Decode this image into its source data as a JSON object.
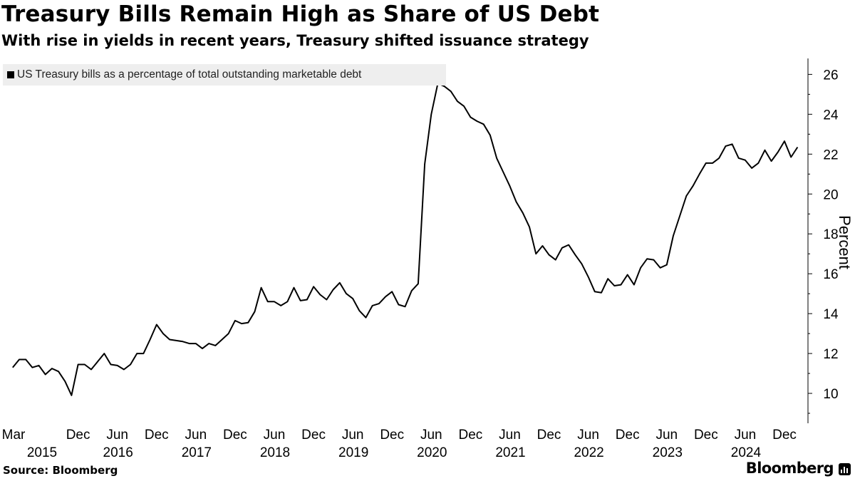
{
  "header": {
    "title": "Treasury Bills Remain High as Share of US Debt",
    "subtitle": "With rise in yields in recent years, Treasury shifted issuance strategy"
  },
  "footer": {
    "source": "Source: Bloomberg",
    "brand": "Bloomberg",
    "brand_icon": "bar-chart-icon"
  },
  "colors": {
    "line": "#000000",
    "legend_bg": "#eeeeee"
  },
  "chart_data": {
    "type": "line",
    "title": "Treasury Bills Remain High as Share of US Debt",
    "ylabel": "Percent",
    "ylim": [
      8.5,
      26.8
    ],
    "yticks": [
      10,
      12,
      14,
      16,
      18,
      20,
      22,
      24,
      26
    ],
    "grid": false,
    "legend_placement": "top-left",
    "y_axis_side": "right",
    "x_ticks": [
      {
        "date": "2015-03",
        "month": "Mar",
        "year": "2015"
      },
      {
        "date": "2015-12",
        "month": "Dec",
        "year": ""
      },
      {
        "date": "2016-06",
        "month": "Jun",
        "year": "2016"
      },
      {
        "date": "2016-12",
        "month": "Dec",
        "year": ""
      },
      {
        "date": "2017-06",
        "month": "Jun",
        "year": "2017"
      },
      {
        "date": "2017-12",
        "month": "Dec",
        "year": ""
      },
      {
        "date": "2018-06",
        "month": "Jun",
        "year": "2018"
      },
      {
        "date": "2018-12",
        "month": "Dec",
        "year": ""
      },
      {
        "date": "2019-06",
        "month": "Jun",
        "year": "2019"
      },
      {
        "date": "2019-12",
        "month": "Dec",
        "year": ""
      },
      {
        "date": "2020-06",
        "month": "Jun",
        "year": "2020"
      },
      {
        "date": "2020-12",
        "month": "Dec",
        "year": ""
      },
      {
        "date": "2021-06",
        "month": "Jun",
        "year": "2021"
      },
      {
        "date": "2021-12",
        "month": "Dec",
        "year": ""
      },
      {
        "date": "2022-06",
        "month": "Jun",
        "year": "2022"
      },
      {
        "date": "2022-12",
        "month": "Dec",
        "year": ""
      },
      {
        "date": "2023-06",
        "month": "Jun",
        "year": "2023"
      },
      {
        "date": "2023-12",
        "month": "Dec",
        "year": ""
      },
      {
        "date": "2024-06",
        "month": "Jun",
        "year": "2024"
      },
      {
        "date": "2024-12",
        "month": "Dec",
        "year": ""
      }
    ],
    "series": [
      {
        "name": "US Treasury bills as a percentage of total outstanding marketable debt",
        "color": "#000000",
        "points": [
          [
            "2015-02",
            11.3
          ],
          [
            "2015-03",
            11.7
          ],
          [
            "2015-04",
            11.7
          ],
          [
            "2015-05",
            11.3
          ],
          [
            "2015-06",
            11.4
          ],
          [
            "2015-07",
            10.95
          ],
          [
            "2015-08",
            11.25
          ],
          [
            "2015-09",
            11.1
          ],
          [
            "2015-10",
            10.6
          ],
          [
            "2015-11",
            9.9
          ],
          [
            "2015-12",
            11.45
          ],
          [
            "2016-01",
            11.45
          ],
          [
            "2016-02",
            11.2
          ],
          [
            "2016-03",
            11.6
          ],
          [
            "2016-04",
            12.0
          ],
          [
            "2016-05",
            11.45
          ],
          [
            "2016-06",
            11.4
          ],
          [
            "2016-07",
            11.2
          ],
          [
            "2016-08",
            11.45
          ],
          [
            "2016-09",
            12.0
          ],
          [
            "2016-10",
            12.0
          ],
          [
            "2016-11",
            12.7
          ],
          [
            "2016-12",
            13.45
          ],
          [
            "2017-01",
            13.0
          ],
          [
            "2017-02",
            12.7
          ],
          [
            "2017-03",
            12.65
          ],
          [
            "2017-04",
            12.6
          ],
          [
            "2017-05",
            12.5
          ],
          [
            "2017-06",
            12.5
          ],
          [
            "2017-07",
            12.25
          ],
          [
            "2017-08",
            12.5
          ],
          [
            "2017-09",
            12.4
          ],
          [
            "2017-10",
            12.7
          ],
          [
            "2017-11",
            13.0
          ],
          [
            "2017-12",
            13.65
          ],
          [
            "2018-01",
            13.5
          ],
          [
            "2018-02",
            13.55
          ],
          [
            "2018-03",
            14.1
          ],
          [
            "2018-04",
            15.3
          ],
          [
            "2018-05",
            14.6
          ],
          [
            "2018-06",
            14.6
          ],
          [
            "2018-07",
            14.4
          ],
          [
            "2018-08",
            14.6
          ],
          [
            "2018-09",
            15.3
          ],
          [
            "2018-10",
            14.65
          ],
          [
            "2018-11",
            14.7
          ],
          [
            "2018-12",
            15.35
          ],
          [
            "2019-01",
            14.95
          ],
          [
            "2019-02",
            14.7
          ],
          [
            "2019-03",
            15.2
          ],
          [
            "2019-04",
            15.55
          ],
          [
            "2019-05",
            15.0
          ],
          [
            "2019-06",
            14.75
          ],
          [
            "2019-07",
            14.15
          ],
          [
            "2019-08",
            13.8
          ],
          [
            "2019-09",
            14.4
          ],
          [
            "2019-10",
            14.5
          ],
          [
            "2019-11",
            14.85
          ],
          [
            "2019-12",
            15.1
          ],
          [
            "2020-01",
            14.45
          ],
          [
            "2020-02",
            14.35
          ],
          [
            "2020-03",
            15.15
          ],
          [
            "2020-04",
            15.5
          ],
          [
            "2020-05",
            21.5
          ],
          [
            "2020-06",
            24.0
          ],
          [
            "2020-07",
            25.55
          ],
          [
            "2020-08",
            25.4
          ],
          [
            "2020-09",
            25.15
          ],
          [
            "2020-10",
            24.65
          ],
          [
            "2020-11",
            24.4
          ],
          [
            "2020-12",
            23.85
          ],
          [
            "2021-01",
            23.65
          ],
          [
            "2021-02",
            23.5
          ],
          [
            "2021-03",
            22.95
          ],
          [
            "2021-04",
            21.8
          ],
          [
            "2021-05",
            21.1
          ],
          [
            "2021-06",
            20.4
          ],
          [
            "2021-07",
            19.6
          ],
          [
            "2021-08",
            19.05
          ],
          [
            "2021-09",
            18.35
          ],
          [
            "2021-10",
            17.0
          ],
          [
            "2021-11",
            17.4
          ],
          [
            "2021-12",
            16.95
          ],
          [
            "2022-01",
            16.7
          ],
          [
            "2022-02",
            17.3
          ],
          [
            "2022-03",
            17.45
          ],
          [
            "2022-04",
            16.95
          ],
          [
            "2022-05",
            16.5
          ],
          [
            "2022-06",
            15.85
          ],
          [
            "2022-07",
            15.1
          ],
          [
            "2022-08",
            15.05
          ],
          [
            "2022-09",
            15.75
          ],
          [
            "2022-10",
            15.4
          ],
          [
            "2022-11",
            15.45
          ],
          [
            "2022-12",
            15.95
          ],
          [
            "2023-01",
            15.45
          ],
          [
            "2023-02",
            16.3
          ],
          [
            "2023-03",
            16.75
          ],
          [
            "2023-04",
            16.7
          ],
          [
            "2023-05",
            16.3
          ],
          [
            "2023-06",
            16.45
          ],
          [
            "2023-07",
            17.9
          ],
          [
            "2023-08",
            18.9
          ],
          [
            "2023-09",
            19.9
          ],
          [
            "2023-10",
            20.4
          ],
          [
            "2023-11",
            21.0
          ],
          [
            "2023-12",
            21.55
          ],
          [
            "2024-01",
            21.55
          ],
          [
            "2024-02",
            21.8
          ],
          [
            "2024-03",
            22.4
          ],
          [
            "2024-04",
            22.5
          ],
          [
            "2024-05",
            21.8
          ],
          [
            "2024-06",
            21.7
          ],
          [
            "2024-07",
            21.3
          ],
          [
            "2024-08",
            21.55
          ],
          [
            "2024-09",
            22.2
          ],
          [
            "2024-10",
            21.65
          ],
          [
            "2024-11",
            22.1
          ],
          [
            "2024-12",
            22.65
          ],
          [
            "2025-01",
            21.85
          ],
          [
            "2025-02",
            22.35
          ]
        ]
      }
    ]
  }
}
